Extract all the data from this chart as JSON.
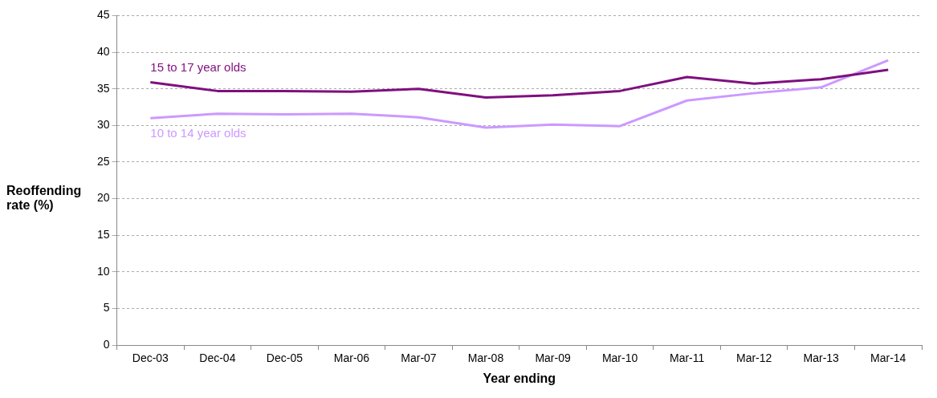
{
  "chart_data": {
    "type": "line",
    "xlabel": "Year ending",
    "ylabel": "Reoffending rate (%)",
    "categories": [
      "Dec-03",
      "Dec-04",
      "Dec-05",
      "Mar-06",
      "Mar-07",
      "Mar-08",
      "Mar-09",
      "Mar-10",
      "Mar-11",
      "Mar-12",
      "Mar-13",
      "Mar-14"
    ],
    "series": [
      {
        "name": "15 to 17 year olds",
        "color": "#7f0f7e",
        "values": [
          35.9,
          34.7,
          34.7,
          34.6,
          35.0,
          33.8,
          34.1,
          34.7,
          36.6,
          35.7,
          36.3,
          37.6
        ]
      },
      {
        "name": "10 to 14 year olds",
        "color": "#cc99ff",
        "values": [
          31.0,
          31.6,
          31.5,
          31.6,
          31.1,
          29.7,
          30.1,
          29.9,
          33.4,
          34.4,
          35.2,
          38.9
        ]
      }
    ],
    "ylim": [
      0,
      45
    ],
    "yticks": [
      0,
      5,
      10,
      15,
      20,
      25,
      30,
      35,
      40,
      45
    ],
    "grid": "y",
    "legend": false,
    "marker": "none",
    "line_style": "solid"
  }
}
